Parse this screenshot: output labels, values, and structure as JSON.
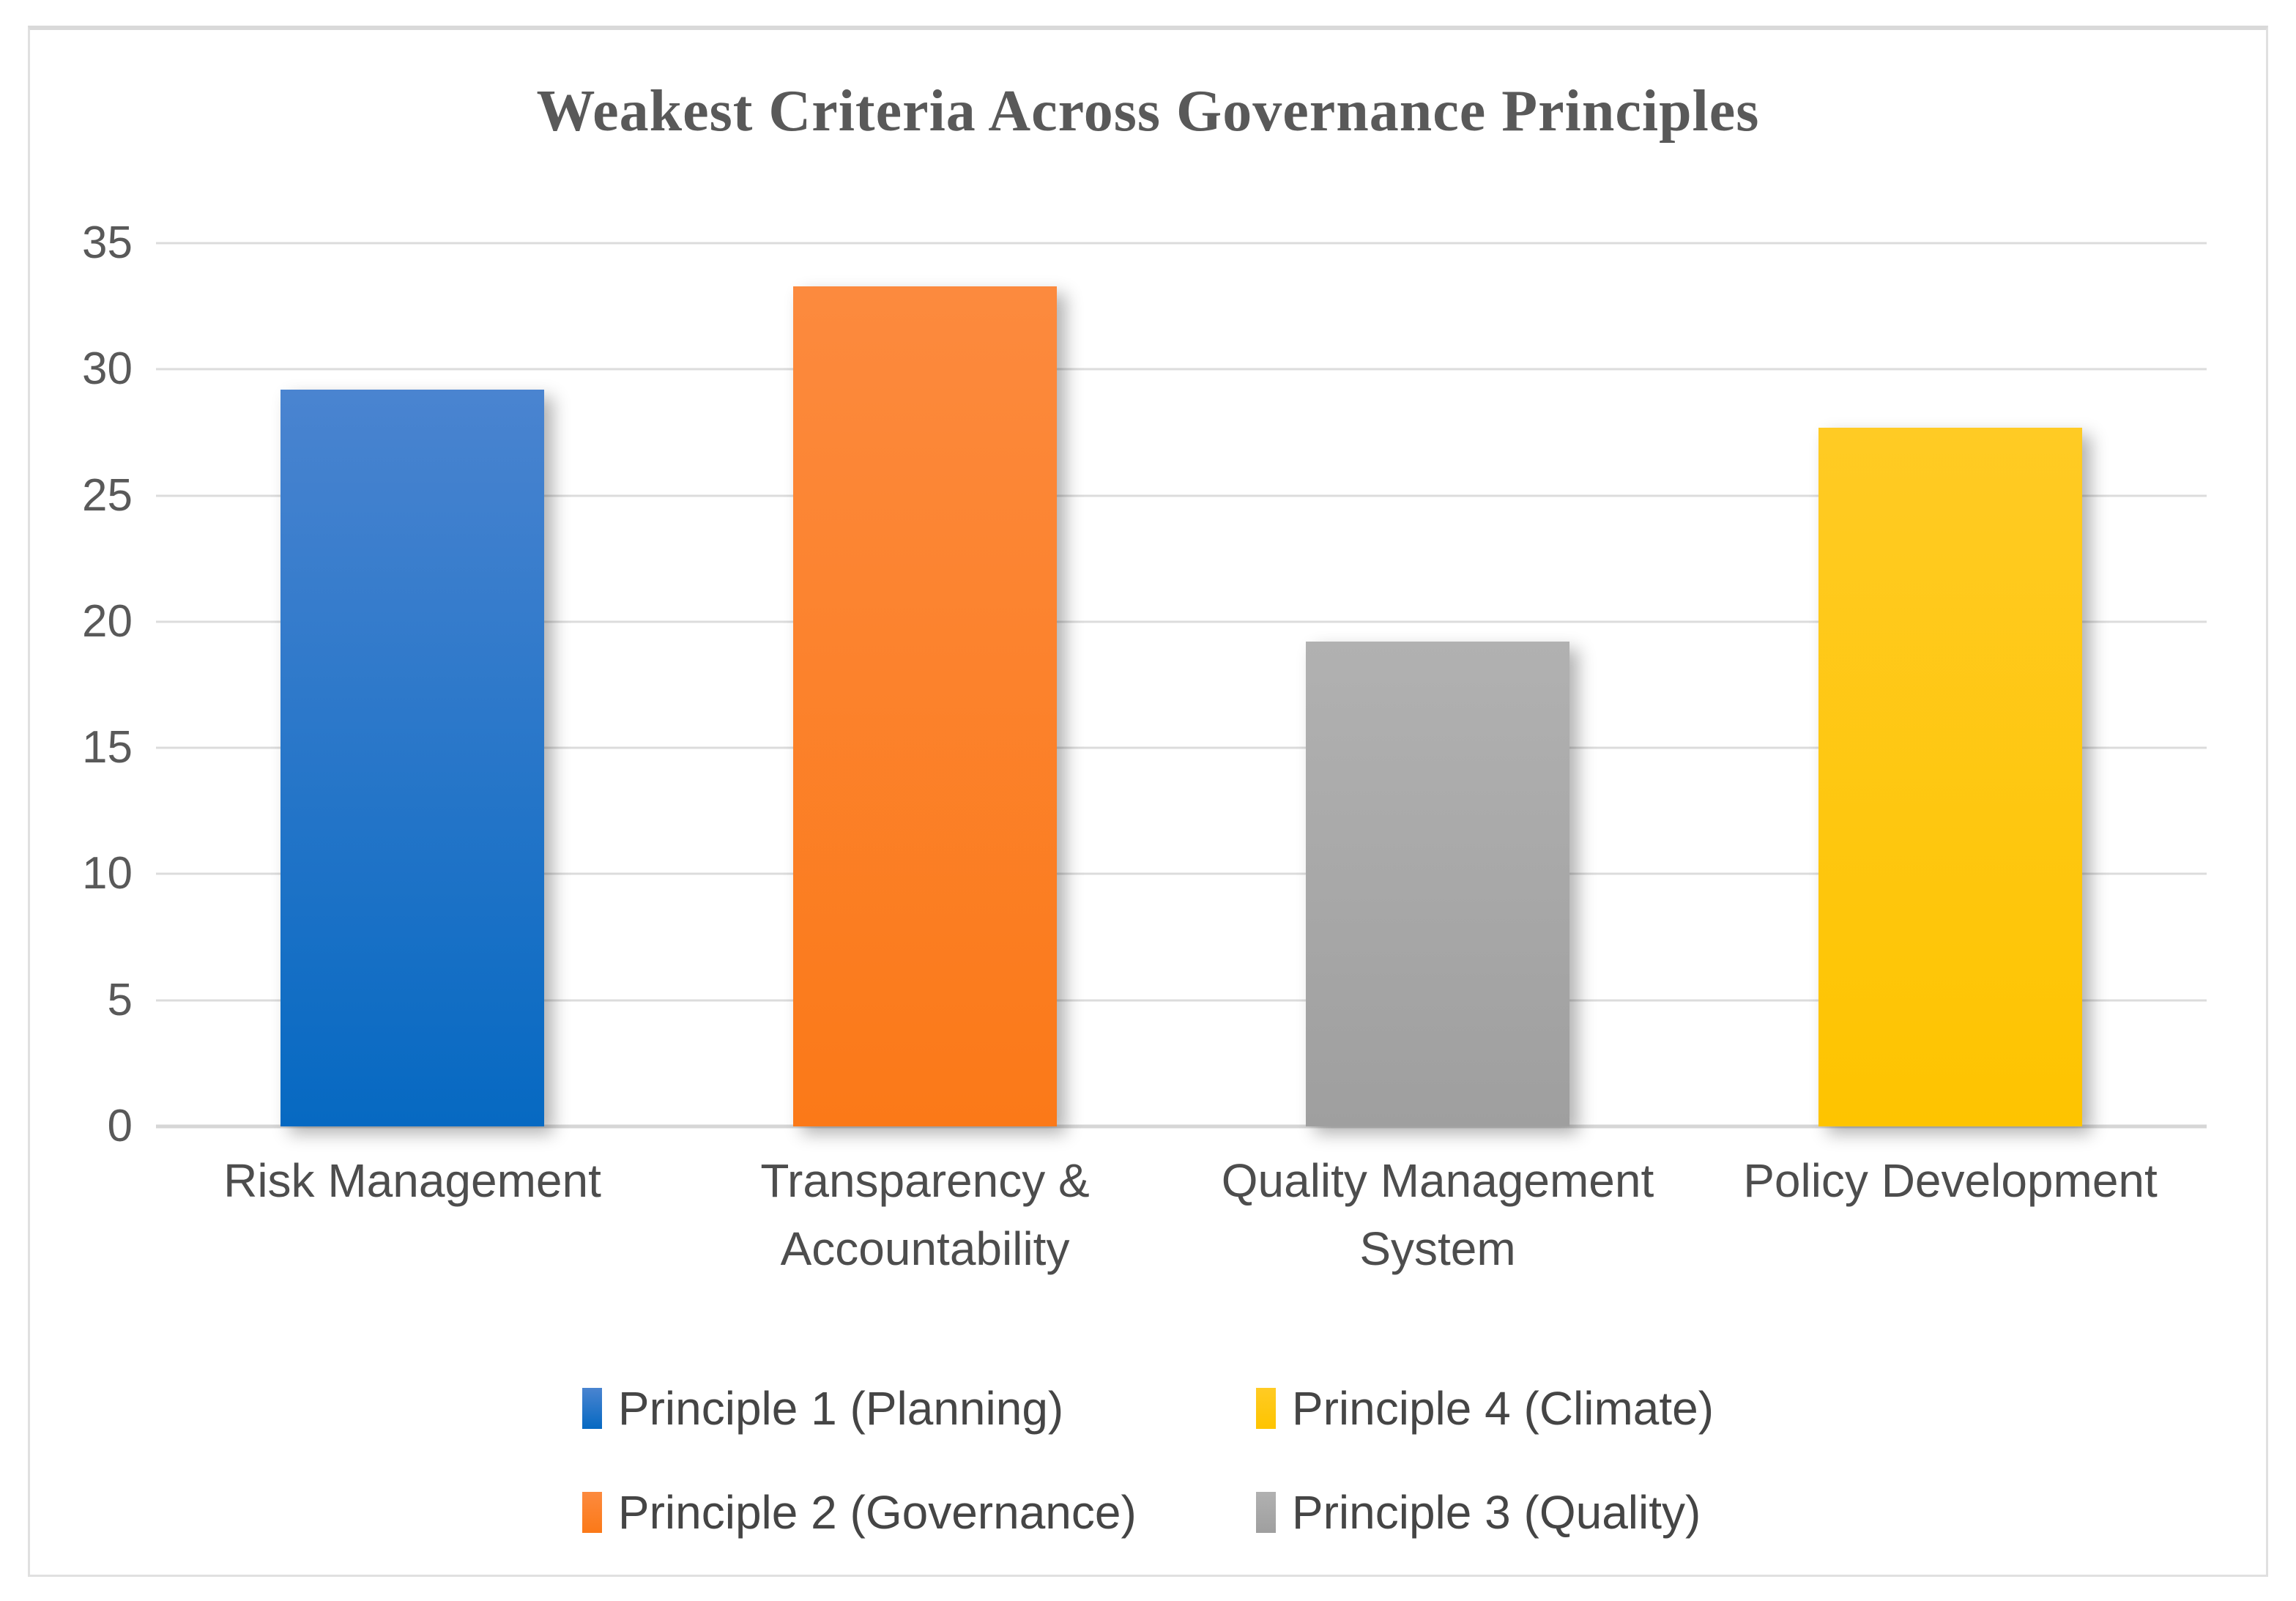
{
  "chart_data": {
    "type": "bar",
    "title": "Weakest Criteria Across Governance Principles",
    "categories": [
      "Risk Management",
      "Transparency & Accountability",
      "Quality Management System",
      "Policy Development"
    ],
    "x_label_lines": [
      [
        "Risk Management"
      ],
      [
        "Transparency &",
        "Accountability"
      ],
      [
        "Quality Management",
        "System"
      ],
      [
        "Policy Development"
      ]
    ],
    "values": [
      29.2,
      33.3,
      19.2,
      27.7
    ],
    "series": [
      {
        "name": "Principle 1 (Planning)",
        "category": "Risk Management",
        "value": 29.2,
        "color_top": "#4a84d0",
        "color_bottom": "#0669c2"
      },
      {
        "name": "Principle 2 (Governance)",
        "category": "Transparency & Accountability",
        "value": 33.3,
        "color_top": "#fc8a3e",
        "color_bottom": "#fb7918"
      },
      {
        "name": "Principle 3 (Quality)",
        "category": "Quality Management System",
        "value": 19.2,
        "color_top": "#b1b1b1",
        "color_bottom": "#9f9f9f"
      },
      {
        "name": "Principle 4 (Climate)",
        "category": "Policy Development",
        "value": 27.7,
        "color_top": "#ffcb24",
        "color_bottom": "#fec400"
      }
    ],
    "legend_order": [
      0,
      3,
      1,
      2
    ],
    "legend_position": "bottom",
    "ylim": [
      0,
      35
    ],
    "yticks": [
      0,
      5,
      10,
      15,
      20,
      25,
      30,
      35
    ],
    "grid": "horizontal",
    "xlabel": "",
    "ylabel": "",
    "bar_width_pct": 12.86,
    "colors": {
      "title_text": "#595959",
      "tick_text": "#595959",
      "xlabel_text": "#4d4d4d",
      "legend_text": "#454545",
      "gridline": "#dcdcdc",
      "frame_border": "#dcdcdc",
      "background": "#ffffff"
    }
  }
}
